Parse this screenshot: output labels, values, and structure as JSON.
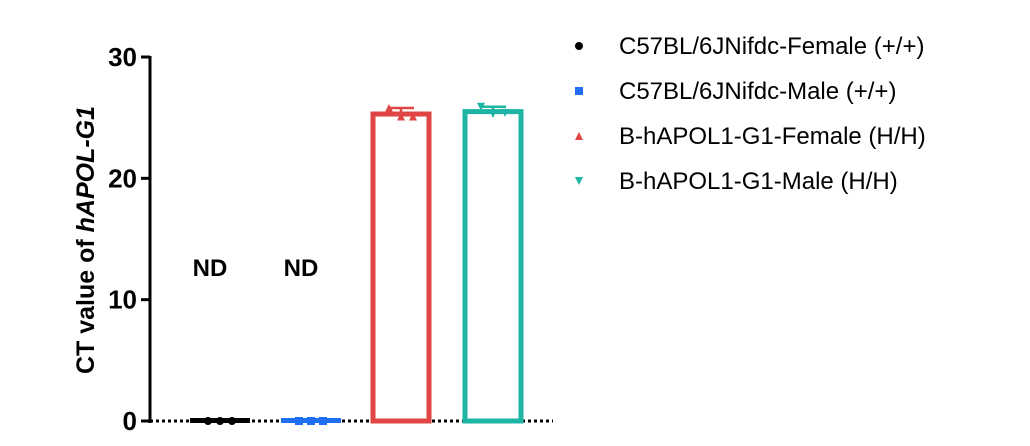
{
  "chart_data": {
    "type": "bar",
    "ylabel_prefix": "CT value of ",
    "ylabel_gene": "hAPOL-G1",
    "ylim": [
      0,
      30
    ],
    "yticks": [
      "0",
      "10",
      "20",
      "30"
    ],
    "grid": false,
    "legend_position": "top-right",
    "categories": [
      "C57BL/6JNifdc-Female (+/+)",
      "C57BL/6JNifdc-Male (+/+)",
      "B-hAPOL1-G1-Female (H/H)",
      "B-hAPOL1-G1-Male (H/H)"
    ],
    "series": [
      {
        "name": "C57BL/6JNifdc-Female (+/+)",
        "value": 0,
        "error": 0,
        "points": [
          0,
          0,
          0
        ],
        "marker": "circle",
        "color": "#000000",
        "annotation": "ND"
      },
      {
        "name": "C57BL/6JNifdc-Male (+/+)",
        "value": 0,
        "error": 0,
        "points": [
          0,
          0,
          0
        ],
        "marker": "square",
        "color": "#1e6ff1",
        "annotation": "ND"
      },
      {
        "name": "B-hAPOL1-G1-Female (H/H)",
        "value": 25.3,
        "error": 0.5,
        "points": [
          25.8,
          25.1,
          25.1
        ],
        "marker": "triangle",
        "color": "#e04545",
        "annotation": ""
      },
      {
        "name": "B-hAPOL1-G1-Male (H/H)",
        "value": 25.5,
        "error": 0.4,
        "points": [
          25.9,
          25.3,
          25.4
        ],
        "marker": "tridown",
        "color": "#1fb5a4",
        "annotation": ""
      }
    ]
  }
}
